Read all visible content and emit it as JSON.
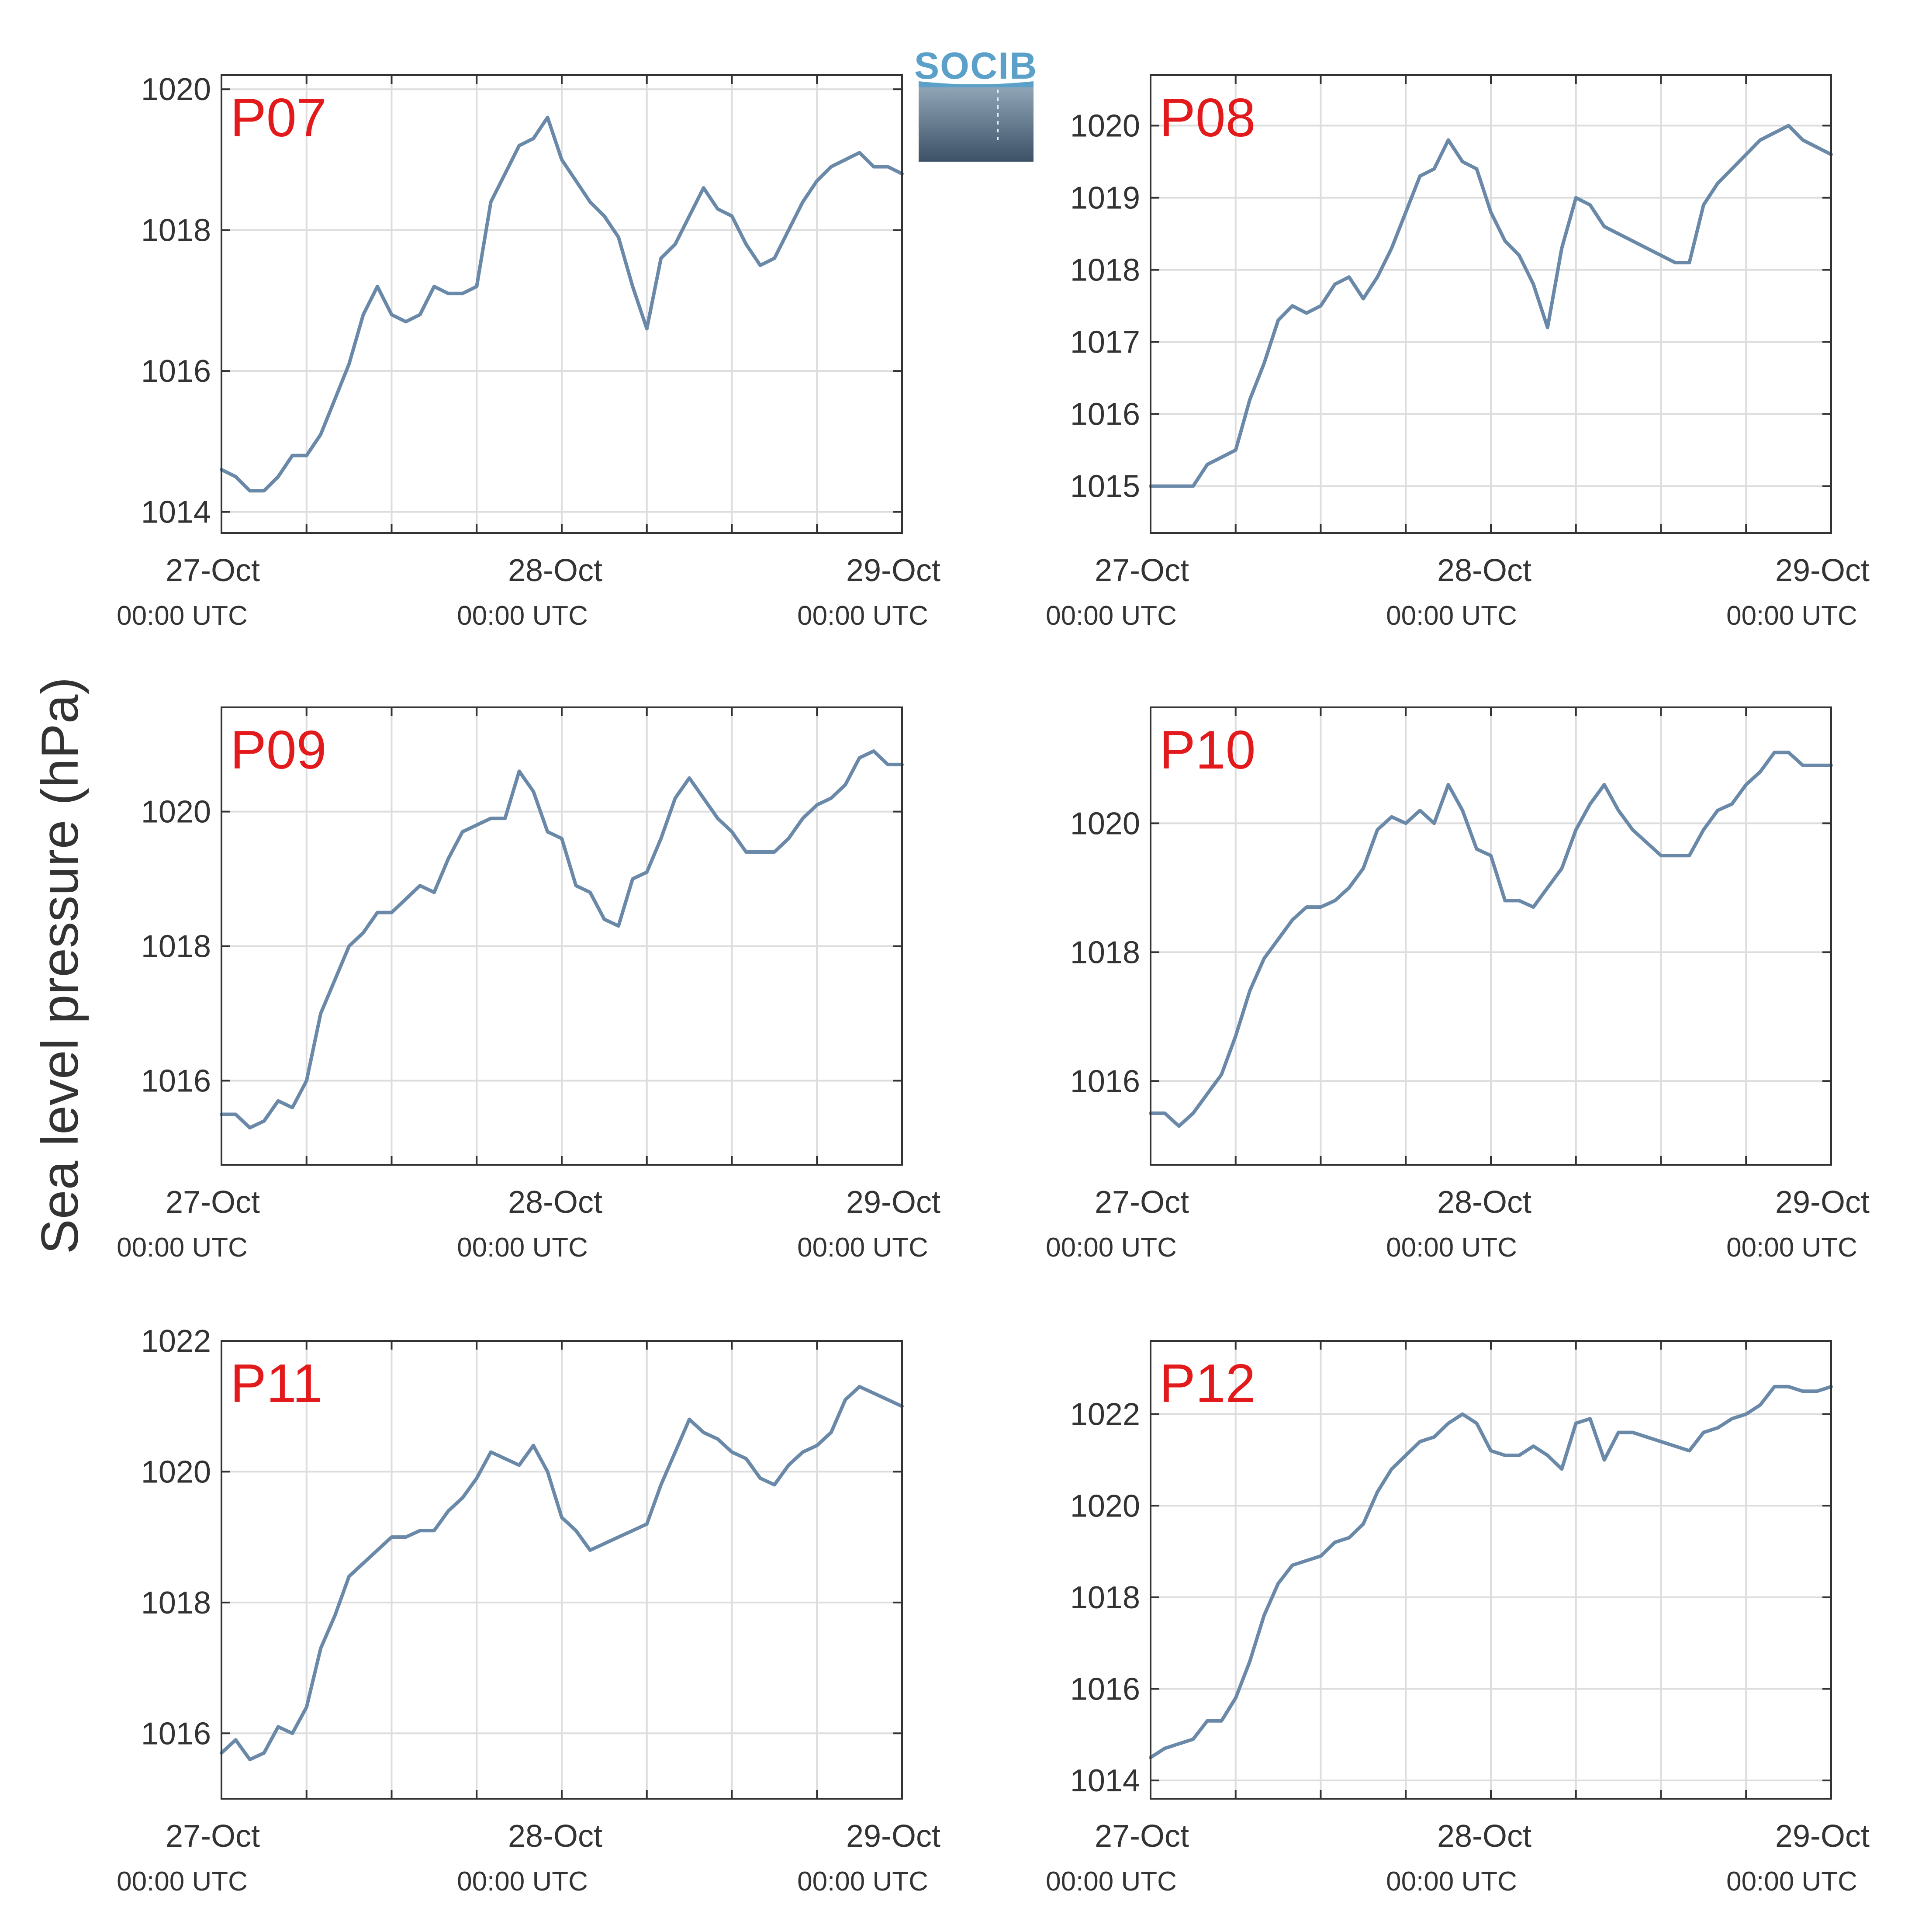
{
  "figure": {
    "ylabel": "Sea level pressure (hPa)",
    "logo_text": "SOCIB",
    "line_color": "#6a89a8",
    "label_color": "#e31a1c",
    "x_ticks": [
      {
        "t": 0,
        "date": "27-Oct",
        "time": "00:00 UTC"
      },
      {
        "t": 24,
        "date": "28-Oct",
        "time": "00:00 UTC"
      },
      {
        "t": 48,
        "date": "29-Oct",
        "time": "00:00 UTC"
      }
    ]
  },
  "chart_data": [
    {
      "type": "line",
      "label": "P07",
      "xlim": [
        0,
        48
      ],
      "ylim": [
        1013.7,
        1020.2
      ],
      "yticks": [
        1014,
        1016,
        1018,
        1020
      ],
      "x_unit": "hours since 27-Oct 00:00 UTC",
      "x": [
        0,
        1,
        2,
        3,
        4,
        5,
        6,
        7,
        8,
        9,
        10,
        11,
        12,
        13,
        14,
        15,
        16,
        17,
        18,
        19,
        20,
        21,
        22,
        23,
        24,
        25,
        26,
        27,
        28,
        29,
        30,
        31,
        32,
        33,
        34,
        35,
        36,
        37,
        38,
        39,
        40,
        41,
        42,
        43,
        44,
        45,
        46,
        47,
        48
      ],
      "values": [
        1014.6,
        1014.5,
        1014.3,
        1014.3,
        1014.5,
        1014.8,
        1014.8,
        1015.1,
        1015.6,
        1016.1,
        1016.8,
        1017.2,
        1016.8,
        1016.7,
        1016.8,
        1017.2,
        1017.1,
        1017.1,
        1017.2,
        1018.4,
        1018.8,
        1019.2,
        1019.3,
        1019.6,
        1019.0,
        1018.7,
        1018.4,
        1018.2,
        1017.9,
        1017.2,
        1016.6,
        1017.6,
        1017.8,
        1018.2,
        1018.6,
        1018.3,
        1018.2,
        1017.8,
        1017.5,
        1017.6,
        1018.0,
        1018.4,
        1018.7,
        1018.9,
        1019.0,
        1019.1,
        1018.9,
        1018.9,
        1018.8
      ]
    },
    {
      "type": "line",
      "label": "P08",
      "xlim": [
        0,
        48
      ],
      "ylim": [
        1014.35,
        1020.7
      ],
      "yticks": [
        1015,
        1016,
        1017,
        1018,
        1019,
        1020
      ],
      "x_unit": "hours since 27-Oct 00:00 UTC",
      "x": [
        0,
        1,
        2,
        3,
        4,
        5,
        6,
        7,
        8,
        9,
        10,
        11,
        12,
        13,
        14,
        15,
        16,
        17,
        18,
        19,
        20,
        21,
        22,
        23,
        24,
        25,
        26,
        27,
        28,
        29,
        30,
        31,
        32,
        33,
        34,
        35,
        36,
        37,
        38,
        39,
        40,
        41,
        42,
        43,
        44,
        45,
        46,
        47,
        48
      ],
      "values": [
        1015.0,
        1015.0,
        1015.0,
        1015.0,
        1015.3,
        1015.4,
        1015.5,
        1016.2,
        1016.7,
        1017.3,
        1017.5,
        1017.4,
        1017.5,
        1017.8,
        1017.9,
        1017.6,
        1017.9,
        1018.3,
        1018.8,
        1019.3,
        1019.4,
        1019.8,
        1019.5,
        1019.4,
        1018.8,
        1018.4,
        1018.2,
        1017.8,
        1017.2,
        1018.3,
        1019.0,
        1018.9,
        1018.6,
        1018.5,
        1018.4,
        1018.3,
        1018.2,
        1018.1,
        1018.1,
        1018.9,
        1019.2,
        1019.4,
        1019.6,
        1019.8,
        1019.9,
        1020.0,
        1019.8,
        1019.7,
        1019.6
      ]
    },
    {
      "type": "line",
      "label": "P09",
      "xlim": [
        0,
        48
      ],
      "ylim": [
        1014.75,
        1021.55
      ],
      "yticks": [
        1016,
        1018,
        1020
      ],
      "x_unit": "hours since 27-Oct 00:00 UTC",
      "x": [
        0,
        1,
        2,
        3,
        4,
        5,
        6,
        7,
        8,
        9,
        10,
        11,
        12,
        13,
        14,
        15,
        16,
        17,
        18,
        19,
        20,
        21,
        22,
        23,
        24,
        25,
        26,
        27,
        28,
        29,
        30,
        31,
        32,
        33,
        34,
        35,
        36,
        37,
        38,
        39,
        40,
        41,
        42,
        43,
        44,
        45,
        46,
        47,
        48
      ],
      "values": [
        1015.5,
        1015.5,
        1015.3,
        1015.4,
        1015.7,
        1015.6,
        1016.0,
        1017.0,
        1017.5,
        1018.0,
        1018.2,
        1018.5,
        1018.5,
        1018.7,
        1018.9,
        1018.8,
        1019.3,
        1019.7,
        1019.8,
        1019.9,
        1019.9,
        1020.6,
        1020.3,
        1019.7,
        1019.6,
        1018.9,
        1018.8,
        1018.4,
        1018.3,
        1019.0,
        1019.1,
        1019.6,
        1020.2,
        1020.5,
        1020.2,
        1019.9,
        1019.7,
        1019.4,
        1019.4,
        1019.4,
        1019.6,
        1019.9,
        1020.1,
        1020.2,
        1020.4,
        1020.8,
        1020.9,
        1020.7,
        1020.7
      ]
    },
    {
      "type": "line",
      "label": "P10",
      "xlim": [
        0,
        48
      ],
      "ylim": [
        1014.7,
        1021.8
      ],
      "yticks": [
        1016,
        1018,
        1020
      ],
      "x_unit": "hours since 27-Oct 00:00 UTC",
      "x": [
        0,
        1,
        2,
        3,
        4,
        5,
        6,
        7,
        8,
        9,
        10,
        11,
        12,
        13,
        14,
        15,
        16,
        17,
        18,
        19,
        20,
        21,
        22,
        23,
        24,
        25,
        26,
        27,
        28,
        29,
        30,
        31,
        32,
        33,
        34,
        35,
        36,
        37,
        38,
        39,
        40,
        41,
        42,
        43,
        44,
        45,
        46,
        47,
        48
      ],
      "values": [
        1015.5,
        1015.5,
        1015.3,
        1015.5,
        1015.8,
        1016.1,
        1016.7,
        1017.4,
        1017.9,
        1018.2,
        1018.5,
        1018.7,
        1018.7,
        1018.8,
        1019.0,
        1019.3,
        1019.9,
        1020.1,
        1020.0,
        1020.2,
        1020.0,
        1020.6,
        1020.2,
        1019.6,
        1019.5,
        1018.8,
        1018.8,
        1018.7,
        1019.0,
        1019.3,
        1019.9,
        1020.3,
        1020.6,
        1020.2,
        1019.9,
        1019.7,
        1019.5,
        1019.5,
        1019.5,
        1019.9,
        1020.2,
        1020.3,
        1020.6,
        1020.8,
        1021.1,
        1021.1,
        1020.9,
        1020.9,
        1020.9
      ]
    },
    {
      "type": "line",
      "label": "P11",
      "xlim": [
        0,
        48
      ],
      "ylim": [
        1015.0,
        1022.0
      ],
      "yticks": [
        1016,
        1018,
        1020,
        1022
      ],
      "x_unit": "hours since 27-Oct 00:00 UTC",
      "x": [
        0,
        1,
        2,
        3,
        4,
        5,
        6,
        7,
        8,
        9,
        10,
        11,
        12,
        13,
        14,
        15,
        16,
        17,
        18,
        19,
        20,
        21,
        22,
        23,
        24,
        25,
        26,
        27,
        28,
        29,
        30,
        31,
        32,
        33,
        34,
        35,
        36,
        37,
        38,
        39,
        40,
        41,
        42,
        43,
        44,
        45,
        46,
        47,
        48
      ],
      "values": [
        1015.7,
        1015.9,
        1015.6,
        1015.7,
        1016.1,
        1016.0,
        1016.4,
        1017.3,
        1017.8,
        1018.4,
        1018.6,
        1018.8,
        1019.0,
        1019.0,
        1019.1,
        1019.1,
        1019.4,
        1019.6,
        1019.9,
        1020.3,
        1020.2,
        1020.1,
        1020.4,
        1020.0,
        1019.3,
        1019.1,
        1018.8,
        1018.9,
        1019.0,
        1019.1,
        1019.2,
        1019.8,
        1020.3,
        1020.8,
        1020.6,
        1020.5,
        1020.3,
        1020.2,
        1019.9,
        1019.8,
        1020.1,
        1020.3,
        1020.4,
        1020.6,
        1021.1,
        1021.3,
        1021.2,
        1021.1,
        1021.0
      ]
    },
    {
      "type": "line",
      "label": "P12",
      "xlim": [
        0,
        48
      ],
      "ylim": [
        1013.6,
        1023.6
      ],
      "yticks": [
        1014,
        1016,
        1018,
        1020,
        1022
      ],
      "x_unit": "hours since 27-Oct 00:00 UTC",
      "x": [
        0,
        1,
        2,
        3,
        4,
        5,
        6,
        7,
        8,
        9,
        10,
        11,
        12,
        13,
        14,
        15,
        16,
        17,
        18,
        19,
        20,
        21,
        22,
        23,
        24,
        25,
        26,
        27,
        28,
        29,
        30,
        31,
        32,
        33,
        34,
        35,
        36,
        37,
        38,
        39,
        40,
        41,
        42,
        43,
        44,
        45,
        46,
        47,
        48
      ],
      "values": [
        1014.5,
        1014.7,
        1014.8,
        1014.9,
        1015.3,
        1015.3,
        1015.8,
        1016.6,
        1017.6,
        1018.3,
        1018.7,
        1018.8,
        1018.9,
        1019.2,
        1019.3,
        1019.6,
        1020.3,
        1020.8,
        1021.1,
        1021.4,
        1021.5,
        1021.8,
        1022.0,
        1021.8,
        1021.2,
        1021.1,
        1021.1,
        1021.3,
        1021.1,
        1020.8,
        1021.8,
        1021.9,
        1021.0,
        1021.6,
        1021.6,
        1021.5,
        1021.4,
        1021.3,
        1021.2,
        1021.6,
        1021.7,
        1021.9,
        1022.0,
        1022.2,
        1022.6,
        1022.6,
        1022.5,
        1022.5,
        1022.6
      ]
    }
  ]
}
